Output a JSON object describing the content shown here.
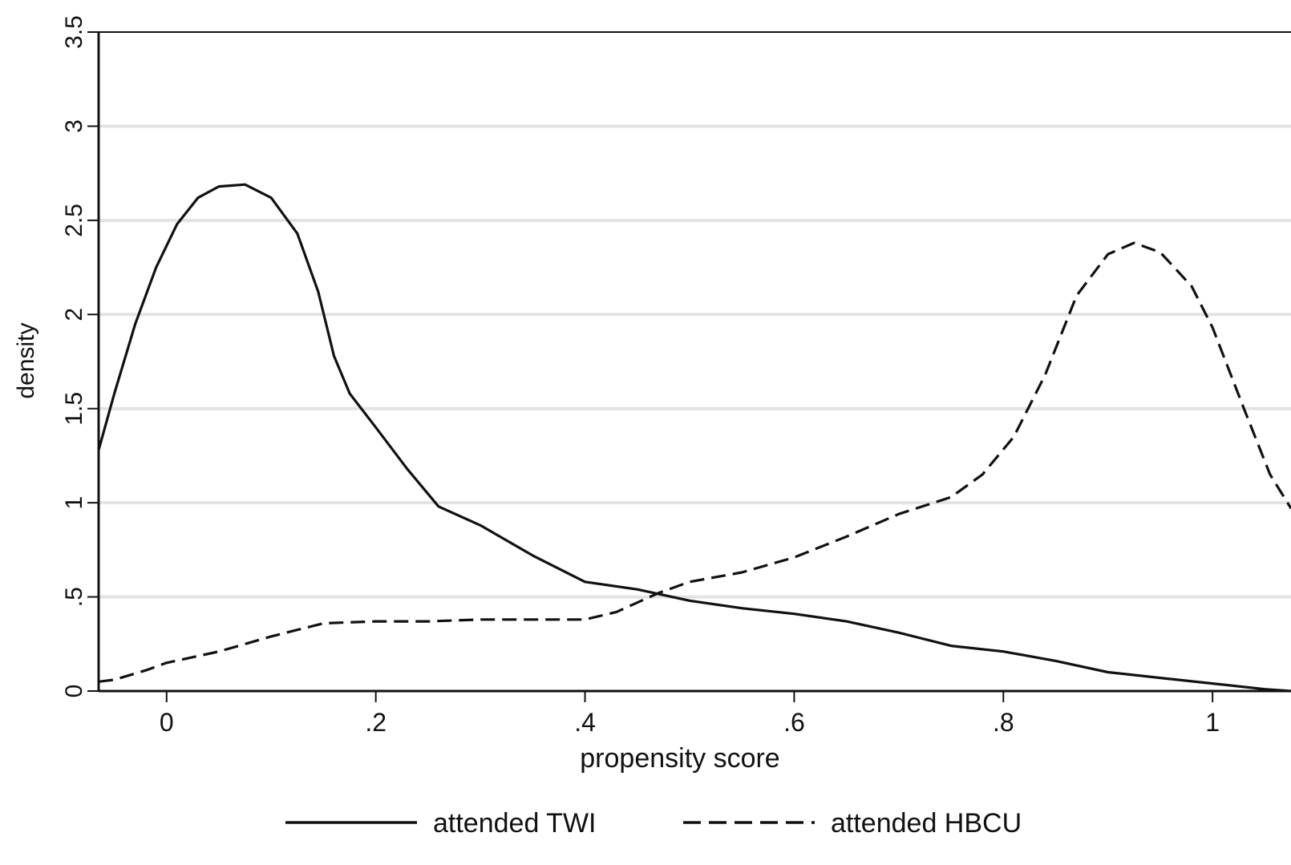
{
  "chart_data": {
    "type": "line",
    "title": "",
    "xlabel": "propensity score",
    "ylabel": "density",
    "xlim": [
      -0.065,
      1.075
    ],
    "ylim": [
      0,
      3.5
    ],
    "grid": true,
    "legend_position": "bottom",
    "x_ticks": [
      {
        "value": 0,
        "label": "0"
      },
      {
        "value": 0.2,
        "label": ".2"
      },
      {
        "value": 0.4,
        "label": ".4"
      },
      {
        "value": 0.6,
        "label": ".6"
      },
      {
        "value": 0.8,
        "label": ".8"
      },
      {
        "value": 1,
        "label": "1"
      }
    ],
    "y_ticks": [
      {
        "value": 0,
        "label": "0"
      },
      {
        "value": 0.5,
        "label": ".5"
      },
      {
        "value": 1,
        "label": "1"
      },
      {
        "value": 1.5,
        "label": "1.5"
      },
      {
        "value": 2,
        "label": "2"
      },
      {
        "value": 2.5,
        "label": "2.5"
      },
      {
        "value": 3,
        "label": "3"
      },
      {
        "value": 3.5,
        "label": "3.5"
      }
    ],
    "series": [
      {
        "name": "attended TWI",
        "style": "solid",
        "color": "#111111",
        "points": [
          [
            -0.065,
            1.28
          ],
          [
            -0.05,
            1.58
          ],
          [
            -0.03,
            1.95
          ],
          [
            -0.01,
            2.25
          ],
          [
            0.01,
            2.48
          ],
          [
            0.03,
            2.62
          ],
          [
            0.05,
            2.68
          ],
          [
            0.075,
            2.69
          ],
          [
            0.1,
            2.62
          ],
          [
            0.125,
            2.43
          ],
          [
            0.145,
            2.12
          ],
          [
            0.16,
            1.78
          ],
          [
            0.175,
            1.58
          ],
          [
            0.2,
            1.4
          ],
          [
            0.23,
            1.18
          ],
          [
            0.26,
            0.98
          ],
          [
            0.3,
            0.88
          ],
          [
            0.35,
            0.72
          ],
          [
            0.4,
            0.58
          ],
          [
            0.45,
            0.54
          ],
          [
            0.5,
            0.48
          ],
          [
            0.55,
            0.44
          ],
          [
            0.6,
            0.41
          ],
          [
            0.65,
            0.37
          ],
          [
            0.7,
            0.31
          ],
          [
            0.75,
            0.24
          ],
          [
            0.8,
            0.21
          ],
          [
            0.85,
            0.16
          ],
          [
            0.9,
            0.1
          ],
          [
            0.95,
            0.07
          ],
          [
            1.0,
            0.04
          ],
          [
            1.05,
            0.01
          ],
          [
            1.075,
            0.0
          ]
        ]
      },
      {
        "name": "attended HBCU",
        "style": "dashed",
        "color": "#111111",
        "points": [
          [
            -0.065,
            0.05
          ],
          [
            -0.05,
            0.06
          ],
          [
            -0.02,
            0.11
          ],
          [
            0.0,
            0.15
          ],
          [
            0.05,
            0.21
          ],
          [
            0.1,
            0.29
          ],
          [
            0.15,
            0.36
          ],
          [
            0.2,
            0.37
          ],
          [
            0.25,
            0.37
          ],
          [
            0.3,
            0.38
          ],
          [
            0.35,
            0.38
          ],
          [
            0.4,
            0.38
          ],
          [
            0.43,
            0.42
          ],
          [
            0.47,
            0.52
          ],
          [
            0.5,
            0.58
          ],
          [
            0.55,
            0.63
          ],
          [
            0.6,
            0.71
          ],
          [
            0.65,
            0.82
          ],
          [
            0.7,
            0.94
          ],
          [
            0.75,
            1.03
          ],
          [
            0.78,
            1.15
          ],
          [
            0.81,
            1.35
          ],
          [
            0.84,
            1.68
          ],
          [
            0.87,
            2.1
          ],
          [
            0.9,
            2.32
          ],
          [
            0.925,
            2.38
          ],
          [
            0.95,
            2.33
          ],
          [
            0.98,
            2.15
          ],
          [
            1.0,
            1.93
          ],
          [
            1.03,
            1.5
          ],
          [
            1.055,
            1.15
          ],
          [
            1.075,
            0.97
          ]
        ]
      }
    ]
  }
}
